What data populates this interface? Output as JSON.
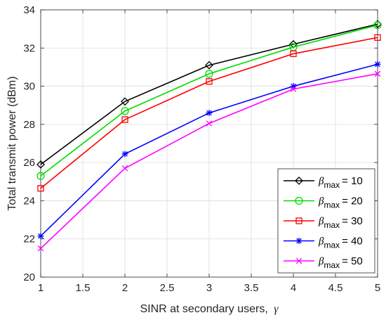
{
  "chart_data": {
    "type": "line",
    "xlabel_text": "SINR at secondary users,",
    "xlabel_symbol": "γ",
    "ylabel": "Total transmit power (dBm)",
    "xlim": [
      1,
      5
    ],
    "ylim": [
      20,
      34
    ],
    "xticks": [
      1,
      1.5,
      2,
      2.5,
      3,
      3.5,
      4,
      4.5,
      5
    ],
    "yticks": [
      20,
      22,
      24,
      26,
      28,
      30,
      32,
      34
    ],
    "grid": true,
    "legend_position": "bottom-right",
    "x": [
      1,
      2,
      3,
      4,
      5
    ],
    "series": [
      {
        "name": "β_max = 10",
        "symbol": "β",
        "sub": "max",
        "value_text": "= 10",
        "color": "#000000",
        "marker": "diamond",
        "values": [
          25.9,
          29.2,
          31.1,
          32.2,
          33.25
        ]
      },
      {
        "name": "β_max = 20",
        "symbol": "β",
        "sub": "max",
        "value_text": "= 20",
        "color": "#00dd00",
        "marker": "circle",
        "values": [
          25.3,
          28.7,
          30.65,
          32.05,
          33.2
        ]
      },
      {
        "name": "β_max = 30",
        "symbol": "β",
        "sub": "max",
        "value_text": "= 30",
        "color": "#ff0000",
        "marker": "square",
        "values": [
          24.65,
          28.25,
          30.25,
          31.7,
          32.55
        ]
      },
      {
        "name": "β_max = 40",
        "symbol": "β",
        "sub": "max",
        "value_text": "= 40",
        "color": "#0000ff",
        "marker": "asterisk",
        "values": [
          22.15,
          26.45,
          28.6,
          30.0,
          31.15
        ]
      },
      {
        "name": "β_max = 50",
        "symbol": "β",
        "sub": "max",
        "value_text": "= 50",
        "color": "#ff00ff",
        "marker": "x",
        "values": [
          21.5,
          25.7,
          28.05,
          29.85,
          30.65
        ]
      }
    ]
  }
}
